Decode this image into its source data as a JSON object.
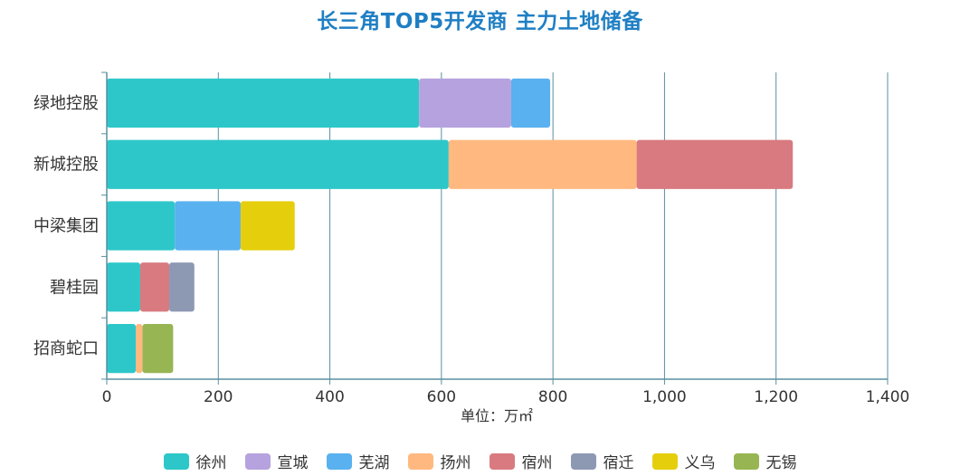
{
  "chart_data": {
    "type": "bar",
    "orientation": "horizontal",
    "stacked": true,
    "title": "长三角TOP5开发商 主力土地储备",
    "xlabel": "单位：万㎡",
    "xlim": [
      0,
      1400
    ],
    "xticks": [
      0,
      200,
      400,
      600,
      800,
      1000,
      1200,
      1400
    ],
    "xtick_labels": [
      "0",
      "200",
      "400",
      "600",
      "800",
      "1,000",
      "1,200",
      "1,400"
    ],
    "grid": "vertical",
    "legend_position": "bottom",
    "categories": [
      "绿地控股",
      "新城控股",
      "中梁集团",
      "碧桂园",
      "招商蛇口"
    ],
    "series": [
      {
        "name": "徐州",
        "color": "#2ec7c9",
        "values": [
          560,
          613,
          122,
          60,
          52
        ]
      },
      {
        "name": "宣城",
        "color": "#b6a2de",
        "values": [
          165,
          0,
          0,
          0,
          0
        ]
      },
      {
        "name": "芜湖",
        "color": "#5ab1ef",
        "values": [
          70,
          0,
          118,
          0,
          0
        ]
      },
      {
        "name": "扬州",
        "color": "#ffb980",
        "values": [
          0,
          337,
          0,
          0,
          12
        ]
      },
      {
        "name": "宿州",
        "color": "#d87a80",
        "values": [
          0,
          280,
          0,
          52,
          0
        ]
      },
      {
        "name": "宿迁",
        "color": "#8d98b3",
        "values": [
          0,
          0,
          0,
          45,
          0
        ]
      },
      {
        "name": "义乌",
        "color": "#e5cf0d",
        "values": [
          0,
          0,
          97,
          0,
          0
        ]
      },
      {
        "name": "无锡",
        "color": "#97b552",
        "values": [
          0,
          0,
          0,
          0,
          55
        ]
      }
    ]
  }
}
